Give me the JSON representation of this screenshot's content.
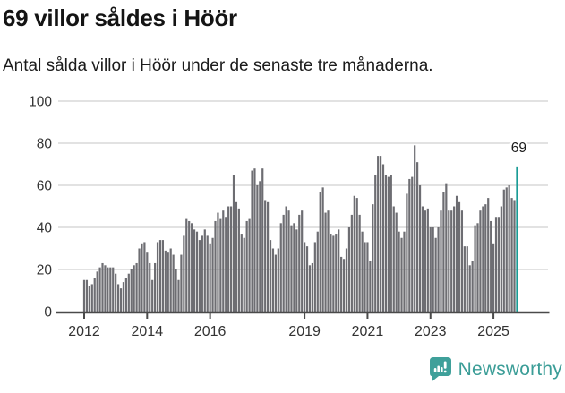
{
  "header": {
    "title": "69 villor såldes i Höör",
    "subtitle": "Antal sålda villor i Höör under de senaste tre månaderna."
  },
  "chart_data": {
    "type": "bar",
    "title": "69 villor såldes i Höör",
    "subtitle": "Antal sålda villor i Höör under de senaste tre månaderna.",
    "ylabel": "",
    "xlabel": "",
    "ylim": [
      0,
      100
    ],
    "grid": true,
    "x_start": "2012-01",
    "x_end": "2025-10",
    "x_frequency": "monthly",
    "values": [
      15,
      15,
      12,
      13,
      16,
      19,
      21,
      23,
      22,
      21,
      21,
      21,
      18,
      13,
      11,
      14,
      16,
      18,
      20,
      22,
      23,
      30,
      32,
      33,
      28,
      23,
      15,
      23,
      33,
      34,
      34,
      29,
      28,
      30,
      27,
      20,
      15,
      27,
      36,
      44,
      43,
      42,
      39,
      38,
      34,
      36,
      39,
      36,
      32,
      35,
      43,
      47,
      44,
      48,
      45,
      50,
      50,
      65,
      52,
      49,
      37,
      35,
      43,
      44,
      67,
      68,
      60,
      62,
      68,
      53,
      52,
      34,
      30,
      27,
      30,
      42,
      46,
      50,
      48,
      41,
      42,
      39,
      46,
      48,
      33,
      31,
      22,
      23,
      33,
      38,
      57,
      59,
      47,
      48,
      37,
      36,
      37,
      39,
      26,
      25,
      30,
      40,
      46,
      55,
      54,
      46,
      38,
      33,
      33,
      24,
      51,
      65,
      74,
      74,
      70,
      65,
      64,
      65,
      50,
      47,
      38,
      35,
      38,
      56,
      63,
      64,
      79,
      71,
      60,
      50,
      48,
      49,
      40,
      40,
      35,
      40,
      48,
      57,
      61,
      48,
      48,
      50,
      55,
      52,
      48,
      31,
      31,
      22,
      24,
      41,
      42,
      48,
      50,
      51,
      54,
      43,
      32,
      45,
      45,
      50,
      58,
      59,
      60,
      54,
      53,
      69
    ],
    "highlight_last_bar": true,
    "highlight_value": 69,
    "highlight_value_label": "69",
    "yticks": [
      0,
      20,
      40,
      60,
      80,
      100
    ],
    "xticks": [
      "2012",
      "2014",
      "2016",
      "2019",
      "2021",
      "2023",
      "2025"
    ],
    "legend": "none",
    "colors": {
      "bar": "#6d6d72",
      "highlight": "#1a9c96",
      "grid": "#e2e2e2",
      "axis": "#4a4a4a",
      "tick_label": "#333333",
      "annotation": "#1b1b1b"
    }
  },
  "footer": {
    "brand": "Newsworthy",
    "logo_icon": "newsworthy-speech-bubble-chart-icon",
    "brand_color": "#3b9d97"
  }
}
